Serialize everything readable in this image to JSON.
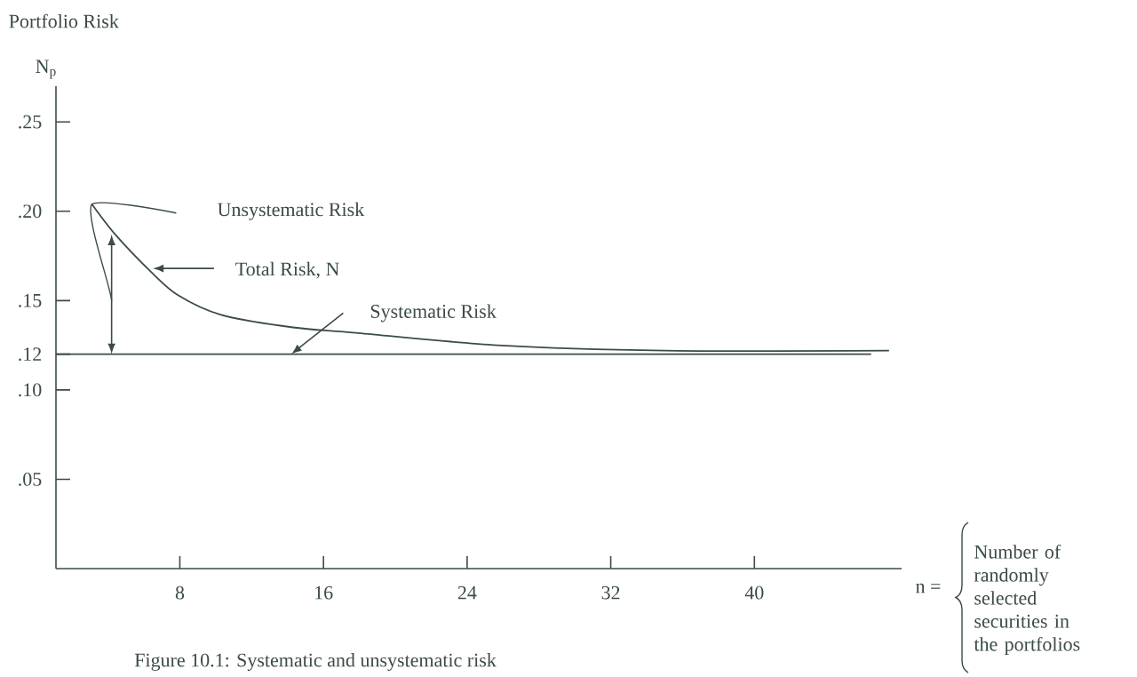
{
  "chart_data": {
    "type": "line",
    "ylabel": "Portfolio Risk",
    "xlabel": "Number of randomly selected securities in the portfolios",
    "x": [
      3.1,
      4.4,
      6.4,
      7.9,
      10.3,
      14.3,
      17.8,
      25.7,
      35,
      47.5
    ],
    "series": [
      {
        "color": "#3b4b49",
        "values": [
          0.204,
          0.187,
          0.166,
          0.153,
          0.142,
          0.135,
          0.132,
          0.125,
          0.122,
          0.122
        ]
      }
    ],
    "xlim": [
      1.1,
      48.2
    ],
    "ylim": [
      0,
      0.27
    ],
    "xticks": [
      8,
      16,
      24,
      32,
      40
    ],
    "yticks": [
      {
        "value": 0.05,
        "label": ".05"
      },
      {
        "value": 0.1,
        "label": ".10"
      },
      {
        "value": 0.12,
        "label": ".12"
      },
      {
        "value": 0.15,
        "label": ".15"
      },
      {
        "value": 0.2,
        "label": ".20"
      },
      {
        "value": 0.25,
        "label": ".25"
      }
    ],
    "ref_lines": [
      {
        "axis": "y",
        "value": 0.12,
        "label": "Systematic Risk",
        "color": "#3b4b49"
      }
    ],
    "annotations": [
      "N$_{p}$",
      "Unsystematic Risk",
      "Total Risk, N",
      "n =",
      "Figure 10.1: Systematic and unsystematic risk"
    ]
  }
}
